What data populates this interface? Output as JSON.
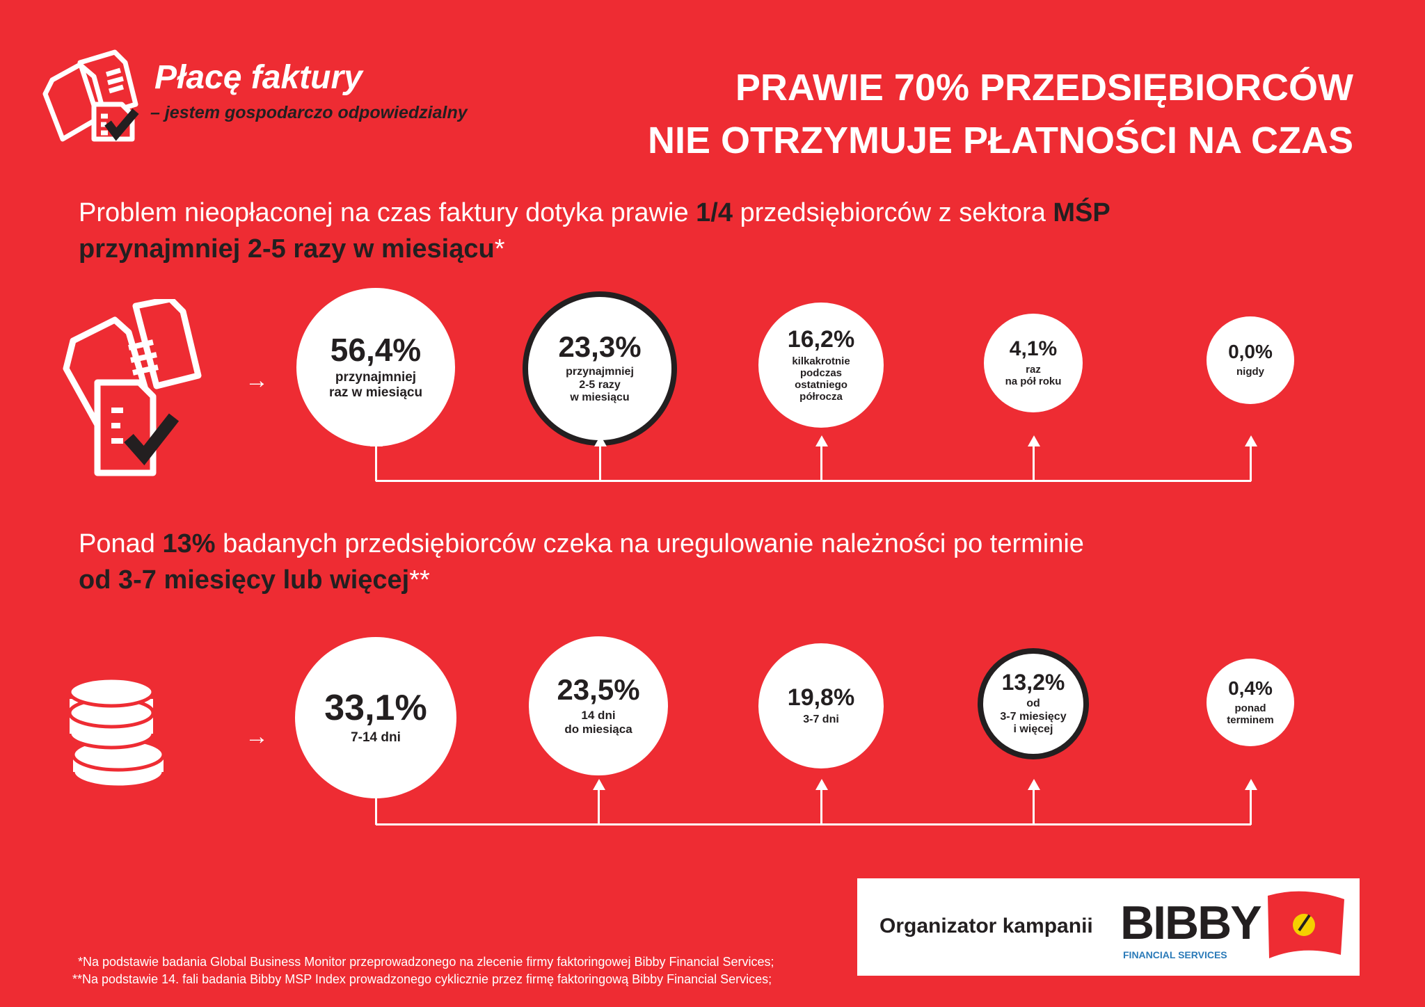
{
  "brand": {
    "title": "Płacę faktury",
    "subtitle": "– jestem gospodarczo odpowiedzialny"
  },
  "headline": {
    "line1": "PRAWIE 70% PRZEDSIĘBIORCÓW",
    "line2": "NIE OTRZYMUJE PŁATNOŚCI NA CZAS"
  },
  "section1": {
    "lead_a": "Problem nieopłaconej na czas faktury dotyka prawie ",
    "lead_b": "1/4",
    "lead_c": " przedsiębiorców z sektora ",
    "lead_d": "MŚP",
    "lead_e": "przynajmniej 2-5 razy w miesiącu",
    "lead_f": "*",
    "items": [
      {
        "value": "56,4%",
        "label": "przynajmniej\nraz w miesiącu",
        "highlight": false
      },
      {
        "value": "23,3%",
        "label": "przynajmniej\n2-5 razy\nw miesiącu",
        "highlight": true
      },
      {
        "value": "16,2%",
        "label": "kilkakrotnie\npodczas\nostatniego\npółrocza",
        "highlight": false
      },
      {
        "value": "4,1%",
        "label": "raz\nna pół roku",
        "highlight": false
      },
      {
        "value": "0,0%",
        "label": "nigdy",
        "highlight": false
      }
    ]
  },
  "section2": {
    "lead_a": "Ponad ",
    "lead_b": "13%",
    "lead_c": " badanych przedsiębiorców czeka na uregulowanie należności po terminie",
    "lead_e": "od 3-7 miesięcy lub więcej",
    "lead_f": "**",
    "items": [
      {
        "value": "33,1%",
        "label": "7-14 dni",
        "highlight": false
      },
      {
        "value": "23,5%",
        "label": "14 dni\ndo miesiąca",
        "highlight": false
      },
      {
        "value": "19,8%",
        "label": "3-7 dni",
        "highlight": false
      },
      {
        "value": "13,2%",
        "label": "od\n3-7 miesięcy\ni więcej",
        "highlight": true
      },
      {
        "value": "0,4%",
        "label": "ponad\nterminem",
        "highlight": false
      }
    ]
  },
  "sponsor": {
    "label": "Organizator kampanii",
    "logo": "BIBBY",
    "logo_sub": "FINANCIAL SERVICES"
  },
  "footnotes": [
    "*Na podstawie badania Global Business Monitor przeprowadzonego na zlecenie firmy faktoringowej Bibby Financial Services;",
    "**Na podstawie 14. fali badania Bibby MSP Index prowadzonego cyklicznie przez firmę faktoringową Bibby Financial Services;"
  ],
  "colors": {
    "background": "#ee2c33",
    "dark": "#231f20",
    "white": "#ffffff",
    "accent_blue": "#2a7ab8"
  }
}
